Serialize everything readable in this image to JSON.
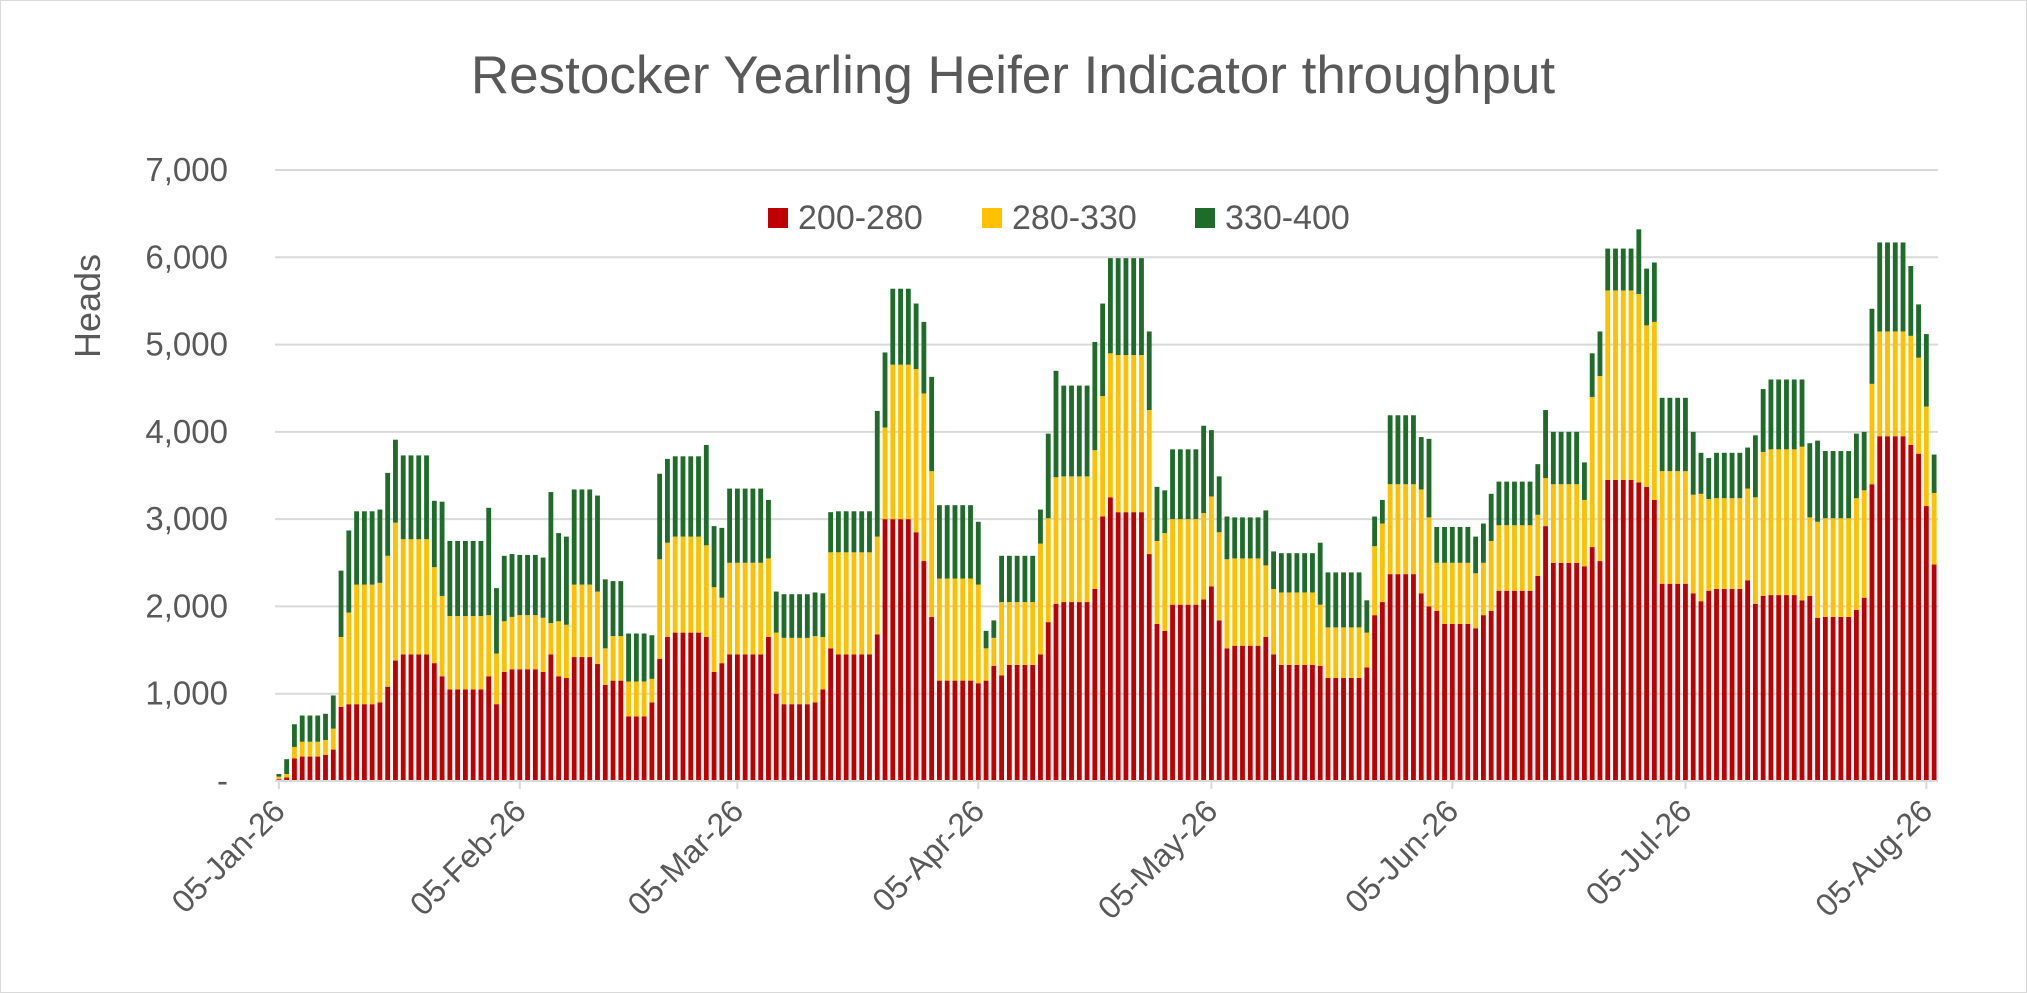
{
  "colors": {
    "s200_280": "#c00000",
    "s280_330": "#ffc000",
    "s330_400": "#1e6b2a",
    "grid": "#d9d9d9",
    "text": "#595959"
  },
  "chart_data": {
    "type": "bar",
    "stacked": true,
    "title": "Restocker Yearling Heifer Indicator throughput",
    "ylabel": "Heads",
    "xlabel": "",
    "ylim": [
      0,
      7000
    ],
    "yticks": [
      0,
      1000,
      2000,
      3000,
      4000,
      5000,
      6000,
      7000
    ],
    "ytick_labels": [
      "-",
      "1,000",
      "2,000",
      "3,000",
      "4,000",
      "5,000",
      "6,000",
      "7,000"
    ],
    "xtick_labels": [
      "05-Jan-26",
      "05-Feb-26",
      "05-Mar-26",
      "05-Apr-26",
      "05-May-26",
      "05-Jun-26",
      "05-Jul-26",
      "05-Aug-26"
    ],
    "x_start": "2026-01-05",
    "x_end": "2026-08-06",
    "grid": true,
    "legend_position": "top-center",
    "series": [
      {
        "name": "200-280",
        "color": "#c00000",
        "values": [
          20,
          40,
          260,
          280,
          280,
          280,
          300,
          360,
          850,
          880,
          880,
          880,
          880,
          900,
          1080,
          1380,
          1450,
          1450,
          1450,
          1450,
          1350,
          1200,
          1050,
          1050,
          1050,
          1050,
          1050,
          1200,
          880,
          1250,
          1280,
          1280,
          1280,
          1280,
          1250,
          1450,
          1200,
          1180,
          1420,
          1420,
          1420,
          1340,
          1100,
          1150,
          1150,
          740,
          740,
          740,
          900,
          1400,
          1650,
          1700,
          1700,
          1700,
          1700,
          1650,
          1250,
          1350,
          1450,
          1450,
          1450,
          1450,
          1450,
          1650,
          1000,
          880,
          880,
          880,
          880,
          900,
          1050,
          1520,
          1450,
          1450,
          1450,
          1450,
          1450,
          1680,
          3000,
          3000,
          3000,
          3000,
          2850,
          2520,
          1880,
          1150,
          1150,
          1150,
          1150,
          1150,
          1120,
          1150,
          1320,
          1210,
          1330,
          1330,
          1330,
          1330,
          1450,
          1820,
          2030,
          2050,
          2050,
          2050,
          2050,
          2200,
          3030,
          3250,
          3080,
          3080,
          3080,
          3080,
          2600,
          1800,
          1720,
          2020,
          2020,
          2020,
          2020,
          2080,
          2230,
          1840,
          1520,
          1550,
          1550,
          1550,
          1550,
          1650,
          1450,
          1330,
          1330,
          1330,
          1330,
          1330,
          1320,
          1180,
          1180,
          1180,
          1180,
          1180,
          1300,
          1900,
          2050,
          2370,
          2370,
          2370,
          2370,
          2150,
          2000,
          1950,
          1800,
          1800,
          1800,
          1800,
          1750,
          1900,
          1950,
          2180,
          2180,
          2180,
          2180,
          2180,
          2350,
          2920,
          2500,
          2500,
          2500,
          2500,
          2460,
          2680,
          2520,
          3450,
          3450,
          3450,
          3450,
          3420,
          3370,
          3220,
          2260,
          2260,
          2260,
          2260,
          2150,
          2060,
          2180,
          2200,
          2200,
          2200,
          2200,
          2300,
          2030,
          2120,
          2130,
          2130,
          2130,
          2130,
          2070,
          2120,
          1870,
          1880,
          1880,
          1880,
          1880,
          1960,
          2100,
          3400,
          3950,
          3950,
          3950,
          3950,
          3850,
          3750,
          3150,
          2480
        ]
      },
      {
        "name": "280-330",
        "color": "#ffc000",
        "values": [
          30,
          40,
          130,
          170,
          170,
          170,
          170,
          240,
          800,
          1050,
          1370,
          1370,
          1370,
          1370,
          1500,
          1580,
          1320,
          1320,
          1320,
          1320,
          1100,
          920,
          840,
          840,
          840,
          840,
          840,
          700,
          580,
          580,
          600,
          620,
          620,
          620,
          620,
          360,
          630,
          610,
          830,
          830,
          830,
          830,
          420,
          510,
          510,
          400,
          400,
          400,
          270,
          1140,
          1080,
          1100,
          1100,
          1100,
          1100,
          1050,
          970,
          750,
          1050,
          1050,
          1050,
          1050,
          1050,
          900,
          700,
          760,
          760,
          760,
          760,
          760,
          600,
          1100,
          1170,
          1170,
          1170,
          1170,
          1170,
          1120,
          1050,
          1770,
          1770,
          1770,
          1870,
          1920,
          1670,
          1170,
          1170,
          1170,
          1170,
          1170,
          1130,
          370,
          320,
          840,
          720,
          720,
          720,
          720,
          1270,
          1190,
          1450,
          1440,
          1440,
          1440,
          1440,
          1590,
          1380,
          1650,
          1800,
          1800,
          1800,
          1800,
          1650,
          950,
          1120,
          980,
          980,
          980,
          980,
          990,
          1030,
          1010,
          1020,
          1000,
          1000,
          1000,
          1000,
          820,
          750,
          830,
          830,
          830,
          830,
          830,
          700,
          580,
          580,
          580,
          580,
          580,
          400,
          790,
          900,
          1030,
          1030,
          1030,
          1030,
          1190,
          1020,
          550,
          700,
          700,
          700,
          700,
          630,
          600,
          800,
          750,
          750,
          750,
          750,
          750,
          700,
          550,
          900,
          900,
          900,
          900,
          760,
          1720,
          2120,
          2170,
          2170,
          2170,
          2170,
          2160,
          1850,
          2040,
          1290,
          1290,
          1290,
          1290,
          1130,
          1230,
          1050,
          1040,
          1040,
          1040,
          1040,
          1050,
          1220,
          1650,
          1670,
          1670,
          1670,
          1670,
          1760,
          900,
          1100,
          1130,
          1130,
          1130,
          1130,
          1280,
          1230,
          1150,
          1200,
          1200,
          1200,
          1200,
          1250,
          1100,
          1140,
          820
        ]
      },
      {
        "name": "330-400",
        "color": "#1e6b2a",
        "values": [
          30,
          170,
          260,
          300,
          300,
          300,
          300,
          380,
          760,
          940,
          840,
          840,
          840,
          840,
          950,
          950,
          960,
          960,
          960,
          960,
          760,
          1080,
          860,
          860,
          860,
          860,
          860,
          1230,
          750,
          750,
          720,
          690,
          690,
          690,
          690,
          1500,
          1010,
          1010,
          1090,
          1090,
          1090,
          1100,
          790,
          630,
          630,
          550,
          550,
          550,
          500,
          980,
          960,
          920,
          920,
          920,
          920,
          1150,
          700,
          800,
          850,
          850,
          850,
          850,
          850,
          670,
          470,
          500,
          500,
          500,
          500,
          500,
          500,
          460,
          470,
          470,
          470,
          470,
          470,
          1440,
          860,
          870,
          870,
          870,
          750,
          820,
          1080,
          840,
          840,
          840,
          840,
          840,
          720,
          200,
          200,
          530,
          530,
          530,
          530,
          530,
          390,
          970,
          1220,
          1040,
          1040,
          1040,
          1040,
          1240,
          1060,
          1090,
          1110,
          1110,
          1110,
          1110,
          900,
          620,
          490,
          800,
          800,
          800,
          800,
          1000,
          760,
          640,
          490,
          470,
          470,
          470,
          470,
          630,
          430,
          450,
          450,
          450,
          450,
          450,
          710,
          630,
          630,
          630,
          630,
          630,
          370,
          340,
          270,
          790,
          790,
          790,
          790,
          600,
          900,
          410,
          410,
          410,
          410,
          410,
          420,
          450,
          540,
          500,
          500,
          500,
          500,
          500,
          580,
          780,
          600,
          600,
          600,
          600,
          430,
          500,
          510,
          480,
          480,
          480,
          480,
          740,
          650,
          680,
          840,
          840,
          840,
          840,
          720,
          470,
          470,
          520,
          520,
          520,
          520,
          470,
          710,
          720,
          800,
          800,
          800,
          800,
          770,
          850,
          930,
          770,
          770,
          770,
          770,
          740,
          670,
          860,
          1020,
          1020,
          1020,
          1020,
          800,
          610,
          830,
          440
        ]
      }
    ]
  }
}
